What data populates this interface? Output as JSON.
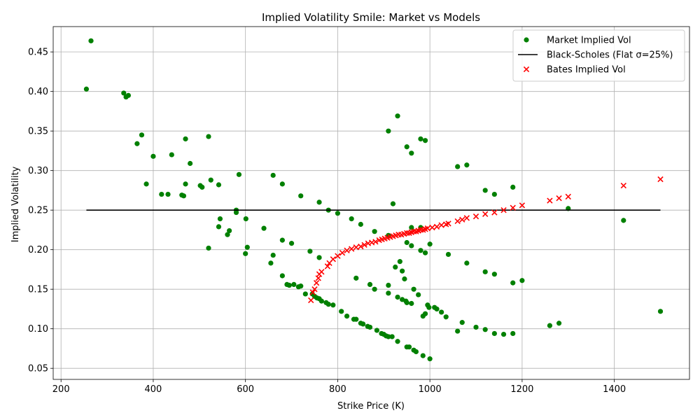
{
  "chart_data": {
    "type": "scatter",
    "title": "Implied Volatility Smile: Market vs Models",
    "xlabel": "Strike Price (K)",
    "ylabel": "Implied Volatility",
    "xlim": [
      183,
      1563
    ],
    "ylim": [
      0.036,
      0.482
    ],
    "xticks": [
      200,
      400,
      600,
      800,
      1000,
      1200,
      1400
    ],
    "yticks": [
      0.05,
      0.1,
      0.15,
      0.2,
      0.25,
      0.3,
      0.35,
      0.4,
      0.45
    ],
    "grid": true,
    "legend_position": "top-right",
    "colors": {
      "market": "#008000",
      "black_scholes": "#000000",
      "bates": "#ff0000"
    },
    "series": [
      {
        "name": "Market Implied Vol",
        "kind": "scatter",
        "marker": "circle",
        "points": [
          [
            255,
            0.403
          ],
          [
            265,
            0.464
          ],
          [
            336,
            0.398
          ],
          [
            341,
            0.393
          ],
          [
            346,
            0.395
          ],
          [
            365,
            0.334
          ],
          [
            375,
            0.345
          ],
          [
            385,
            0.283
          ],
          [
            400,
            0.318
          ],
          [
            418,
            0.27
          ],
          [
            432,
            0.27
          ],
          [
            440,
            0.32
          ],
          [
            462,
            0.269
          ],
          [
            466,
            0.268
          ],
          [
            470,
            0.283
          ],
          [
            470,
            0.34
          ],
          [
            480,
            0.309
          ],
          [
            502,
            0.281
          ],
          [
            506,
            0.279
          ],
          [
            520,
            0.202
          ],
          [
            520,
            0.343
          ],
          [
            525,
            0.288
          ],
          [
            542,
            0.229
          ],
          [
            542,
            0.282
          ],
          [
            545,
            0.239
          ],
          [
            561,
            0.219
          ],
          [
            565,
            0.224
          ],
          [
            580,
            0.247
          ],
          [
            580,
            0.25
          ],
          [
            586,
            0.295
          ],
          [
            600,
            0.195
          ],
          [
            601,
            0.239
          ],
          [
            604,
            0.203
          ],
          [
            640,
            0.227
          ],
          [
            655,
            0.183
          ],
          [
            660,
            0.193
          ],
          [
            660,
            0.294
          ],
          [
            680,
            0.212
          ],
          [
            680,
            0.167
          ],
          [
            680,
            0.283
          ],
          [
            690,
            0.156
          ],
          [
            695,
            0.155
          ],
          [
            700,
            0.208
          ],
          [
            705,
            0.156
          ],
          [
            715,
            0.153
          ],
          [
            720,
            0.154
          ],
          [
            720,
            0.268
          ],
          [
            730,
            0.144
          ],
          [
            740,
            0.198
          ],
          [
            745,
            0.144
          ],
          [
            750,
            0.141
          ],
          [
            755,
            0.139
          ],
          [
            760,
            0.138
          ],
          [
            760,
            0.19
          ],
          [
            760,
            0.26
          ],
          [
            765,
            0.135
          ],
          [
            775,
            0.133
          ],
          [
            780,
            0.131
          ],
          [
            780,
            0.25
          ],
          [
            790,
            0.13
          ],
          [
            800,
            0.246
          ],
          [
            808,
            0.122
          ],
          [
            820,
            0.116
          ],
          [
            830,
            0.239
          ],
          [
            835,
            0.112
          ],
          [
            840,
            0.112
          ],
          [
            840,
            0.164
          ],
          [
            850,
            0.232
          ],
          [
            850,
            0.107
          ],
          [
            855,
            0.106
          ],
          [
            865,
            0.103
          ],
          [
            870,
            0.102
          ],
          [
            870,
            0.156
          ],
          [
            880,
            0.223
          ],
          [
            880,
            0.15
          ],
          [
            885,
            0.098
          ],
          [
            895,
            0.094
          ],
          [
            900,
            0.093
          ],
          [
            905,
            0.091
          ],
          [
            910,
            0.09
          ],
          [
            910,
            0.155
          ],
          [
            910,
            0.145
          ],
          [
            910,
            0.218
          ],
          [
            910,
            0.35
          ],
          [
            918,
            0.09
          ],
          [
            920,
            0.258
          ],
          [
            925,
            0.178
          ],
          [
            930,
            0.369
          ],
          [
            930,
            0.084
          ],
          [
            930,
            0.14
          ],
          [
            935,
            0.185
          ],
          [
            940,
            0.137
          ],
          [
            940,
            0.173
          ],
          [
            945,
            0.163
          ],
          [
            948,
            0.135
          ],
          [
            950,
            0.077
          ],
          [
            950,
            0.133
          ],
          [
            950,
            0.209
          ],
          [
            950,
            0.33
          ],
          [
            955,
            0.077
          ],
          [
            960,
            0.205
          ],
          [
            960,
            0.228
          ],
          [
            960,
            0.132
          ],
          [
            960,
            0.322
          ],
          [
            965,
            0.073
          ],
          [
            965,
            0.15
          ],
          [
            970,
            0.071
          ],
          [
            975,
            0.143
          ],
          [
            980,
            0.199
          ],
          [
            980,
            0.228
          ],
          [
            980,
            0.34
          ],
          [
            985,
            0.066
          ],
          [
            985,
            0.116
          ],
          [
            990,
            0.338
          ],
          [
            990,
            0.119
          ],
          [
            990,
            0.196
          ],
          [
            995,
            0.13
          ],
          [
            998,
            0.127
          ],
          [
            1000,
            0.207
          ],
          [
            1000,
            0.062
          ],
          [
            1010,
            0.127
          ],
          [
            1015,
            0.125
          ],
          [
            1025,
            0.121
          ],
          [
            1035,
            0.115
          ],
          [
            1040,
            0.194
          ],
          [
            1060,
            0.305
          ],
          [
            1060,
            0.097
          ],
          [
            1070,
            0.108
          ],
          [
            1080,
            0.307
          ],
          [
            1080,
            0.183
          ],
          [
            1100,
            0.102
          ],
          [
            1120,
            0.275
          ],
          [
            1120,
            0.172
          ],
          [
            1120,
            0.099
          ],
          [
            1140,
            0.27
          ],
          [
            1140,
            0.169
          ],
          [
            1140,
            0.094
          ],
          [
            1160,
            0.093
          ],
          [
            1180,
            0.279
          ],
          [
            1180,
            0.158
          ],
          [
            1180,
            0.094
          ],
          [
            1200,
            0.161
          ],
          [
            1260,
            0.104
          ],
          [
            1280,
            0.107
          ],
          [
            1300,
            0.252
          ],
          [
            1420,
            0.237
          ],
          [
            1500,
            0.122
          ]
        ]
      },
      {
        "name": "Black-Scholes (Flat σ=25%)",
        "kind": "line",
        "points": [
          [
            255,
            0.25
          ],
          [
            1500,
            0.25
          ]
        ]
      },
      {
        "name": "Bates Implied Vol",
        "kind": "scatter",
        "marker": "x",
        "points": [
          [
            742,
            0.136
          ],
          [
            746,
            0.146
          ],
          [
            750,
            0.15
          ],
          [
            754,
            0.158
          ],
          [
            758,
            0.164
          ],
          [
            760,
            0.169
          ],
          [
            765,
            0.172
          ],
          [
            778,
            0.179
          ],
          [
            782,
            0.183
          ],
          [
            790,
            0.188
          ],
          [
            800,
            0.192
          ],
          [
            810,
            0.196
          ],
          [
            820,
            0.199
          ],
          [
            830,
            0.201
          ],
          [
            840,
            0.203
          ],
          [
            850,
            0.204
          ],
          [
            858,
            0.206
          ],
          [
            866,
            0.208
          ],
          [
            874,
            0.209
          ],
          [
            882,
            0.21
          ],
          [
            890,
            0.212
          ],
          [
            896,
            0.213
          ],
          [
            902,
            0.214
          ],
          [
            908,
            0.215
          ],
          [
            914,
            0.216
          ],
          [
            920,
            0.217
          ],
          [
            926,
            0.218
          ],
          [
            932,
            0.219
          ],
          [
            938,
            0.219
          ],
          [
            944,
            0.22
          ],
          [
            950,
            0.221
          ],
          [
            955,
            0.221
          ],
          [
            960,
            0.222
          ],
          [
            965,
            0.223
          ],
          [
            970,
            0.223
          ],
          [
            975,
            0.224
          ],
          [
            980,
            0.225
          ],
          [
            985,
            0.225
          ],
          [
            990,
            0.226
          ],
          [
            995,
            0.227
          ],
          [
            1005,
            0.228
          ],
          [
            1015,
            0.229
          ],
          [
            1025,
            0.231
          ],
          [
            1035,
            0.232
          ],
          [
            1040,
            0.233
          ],
          [
            1060,
            0.236
          ],
          [
            1070,
            0.238
          ],
          [
            1080,
            0.24
          ],
          [
            1100,
            0.242
          ],
          [
            1120,
            0.245
          ],
          [
            1140,
            0.247
          ],
          [
            1160,
            0.25
          ],
          [
            1180,
            0.253
          ],
          [
            1200,
            0.256
          ],
          [
            1260,
            0.262
          ],
          [
            1280,
            0.265
          ],
          [
            1300,
            0.267
          ],
          [
            1420,
            0.281
          ],
          [
            1500,
            0.289
          ]
        ]
      }
    ]
  }
}
